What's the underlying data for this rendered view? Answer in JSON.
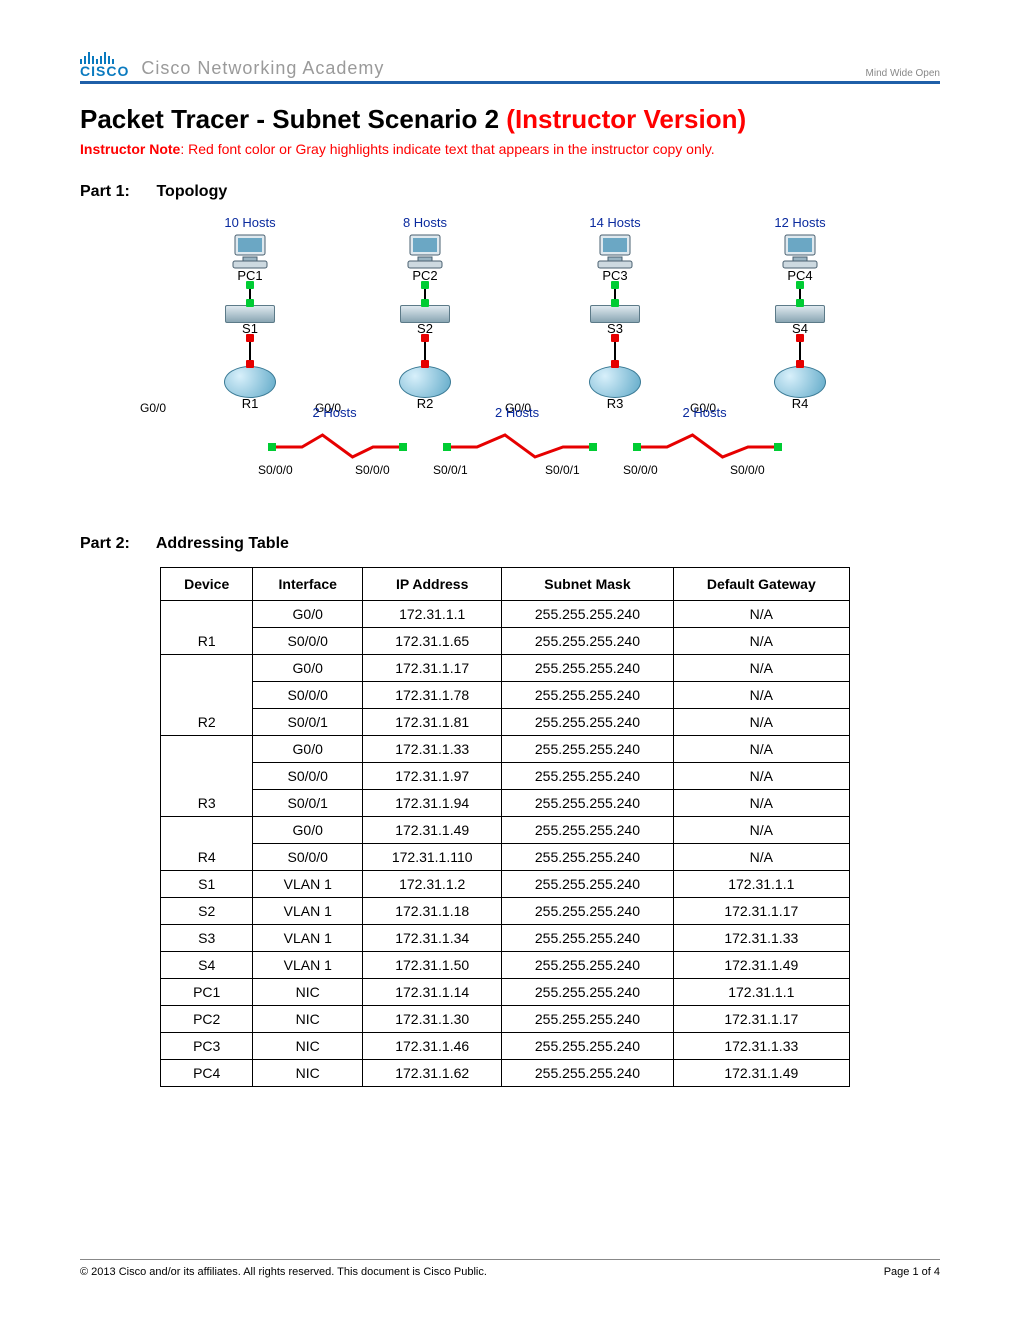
{
  "header": {
    "logo_text": "CISCO",
    "academy": "Cisco Networking Academy",
    "tagline": "Mind Wide Open"
  },
  "title": {
    "black": "Packet Tracer - Subnet Scenario 2 ",
    "red": "(Instructor Version)"
  },
  "instructor_note": {
    "label": "Instructor Note",
    "text": ": Red font color or Gray highlights indicate text that appears in the instructor copy only."
  },
  "part1": {
    "label": "Part 1:",
    "title": "Topology"
  },
  "part2": {
    "label": "Part 2:",
    "title": "Addressing Table"
  },
  "topology": {
    "columns": [
      {
        "hosts": "10 Hosts",
        "pc": "PC1",
        "sw": "S1",
        "router": "R1",
        "g": "G0/0"
      },
      {
        "hosts": "8 Hosts",
        "pc": "PC2",
        "sw": "S2",
        "router": "R2",
        "g": "G0/0"
      },
      {
        "hosts": "14 Hosts",
        "pc": "PC3",
        "sw": "S3",
        "router": "R3",
        "g": "G0/0"
      },
      {
        "hosts": "12 Hosts",
        "pc": "PC4",
        "sw": "S4",
        "router": "R4",
        "g": "G0/0"
      }
    ],
    "wan_hosts": "2 Hosts",
    "serial_labels": {
      "r1_r2_a": "S0/0/0",
      "r1_r2_b": "S0/0/0",
      "r2_r3_a": "S0/0/1",
      "r2_r3_b": "S0/0/1",
      "r3_r4_a": "S0/0/0",
      "r3_r4_b": "S0/0/0"
    }
  },
  "table": {
    "headers": [
      "Device",
      "Interface",
      "IP Address",
      "Subnet Mask",
      "Default Gateway"
    ],
    "groups": [
      {
        "device": "R1",
        "rows": [
          {
            "iface": "G0/0",
            "ip": "172.31.1.1",
            "mask": "255.255.255.240",
            "gw": "N/A"
          },
          {
            "iface": "S0/0/0",
            "ip": "172.31.1.65",
            "mask": "255.255.255.240",
            "gw": "N/A"
          }
        ]
      },
      {
        "device": "R2",
        "rows": [
          {
            "iface": "G0/0",
            "ip": "172.31.1.17",
            "mask": "255.255.255.240",
            "gw": "N/A"
          },
          {
            "iface": "S0/0/0",
            "ip": "172.31.1.78",
            "mask": "255.255.255.240",
            "gw": "N/A"
          },
          {
            "iface": "S0/0/1",
            "ip": "172.31.1.81",
            "mask": "255.255.255.240",
            "gw": "N/A"
          }
        ]
      },
      {
        "device": "R3",
        "rows": [
          {
            "iface": "G0/0",
            "ip": "172.31.1.33",
            "mask": "255.255.255.240",
            "gw": "N/A"
          },
          {
            "iface": "S0/0/0",
            "ip": "172.31.1.97",
            "mask": "255.255.255.240",
            "gw": "N/A"
          },
          {
            "iface": "S0/0/1",
            "ip": "172.31.1.94",
            "mask": "255.255.255.240",
            "gw": "N/A"
          }
        ]
      },
      {
        "device": "R4",
        "rows": [
          {
            "iface": "G0/0",
            "ip": "172.31.1.49",
            "mask": "255.255.255.240",
            "gw": "N/A"
          },
          {
            "iface": "S0/0/0",
            "ip": "172.31.1.110",
            "mask": "255.255.255.240",
            "gw": "N/A"
          }
        ]
      },
      {
        "device": "S1",
        "rows": [
          {
            "iface": "VLAN 1",
            "ip": "172.31.1.2",
            "mask": "255.255.255.240",
            "gw": "172.31.1.1"
          }
        ]
      },
      {
        "device": "S2",
        "rows": [
          {
            "iface": "VLAN 1",
            "ip": "172.31.1.18",
            "mask": "255.255.255.240",
            "gw": "172.31.1.17"
          }
        ]
      },
      {
        "device": "S3",
        "rows": [
          {
            "iface": "VLAN 1",
            "ip": "172.31.1.34",
            "mask": "255.255.255.240",
            "gw": "172.31.1.33"
          }
        ]
      },
      {
        "device": "S4",
        "rows": [
          {
            "iface": "VLAN 1",
            "ip": "172.31.1.50",
            "mask": "255.255.255.240",
            "gw": "172.31.1.49"
          }
        ]
      },
      {
        "device": "PC1",
        "rows": [
          {
            "iface": "NIC",
            "ip": "172.31.1.14",
            "mask": "255.255.255.240",
            "gw": "172.31.1.1"
          }
        ]
      },
      {
        "device": "PC2",
        "rows": [
          {
            "iface": "NIC",
            "ip": "172.31.1.30",
            "mask": "255.255.255.240",
            "gw": "172.31.1.17"
          }
        ]
      },
      {
        "device": "PC3",
        "rows": [
          {
            "iface": "NIC",
            "ip": "172.31.1.46",
            "mask": "255.255.255.240",
            "gw": "172.31.1.33"
          }
        ]
      },
      {
        "device": "PC4",
        "rows": [
          {
            "iface": "NIC",
            "ip": "172.31.1.62",
            "mask": "255.255.255.240",
            "gw": "172.31.1.49"
          }
        ]
      }
    ]
  },
  "footer": {
    "copyright": "© 2013 Cisco and/or its affiliates. All rights reserved. This document is Cisco Public.",
    "page": "Page 1 of 4"
  },
  "colors": {
    "brand_blue": "#1f5fa8",
    "cisco_blue": "#0a7abf",
    "red": "#ff0000",
    "label_blue": "#0a2a9e",
    "wan_red": "#e60000",
    "led_green": "#00cc33"
  }
}
